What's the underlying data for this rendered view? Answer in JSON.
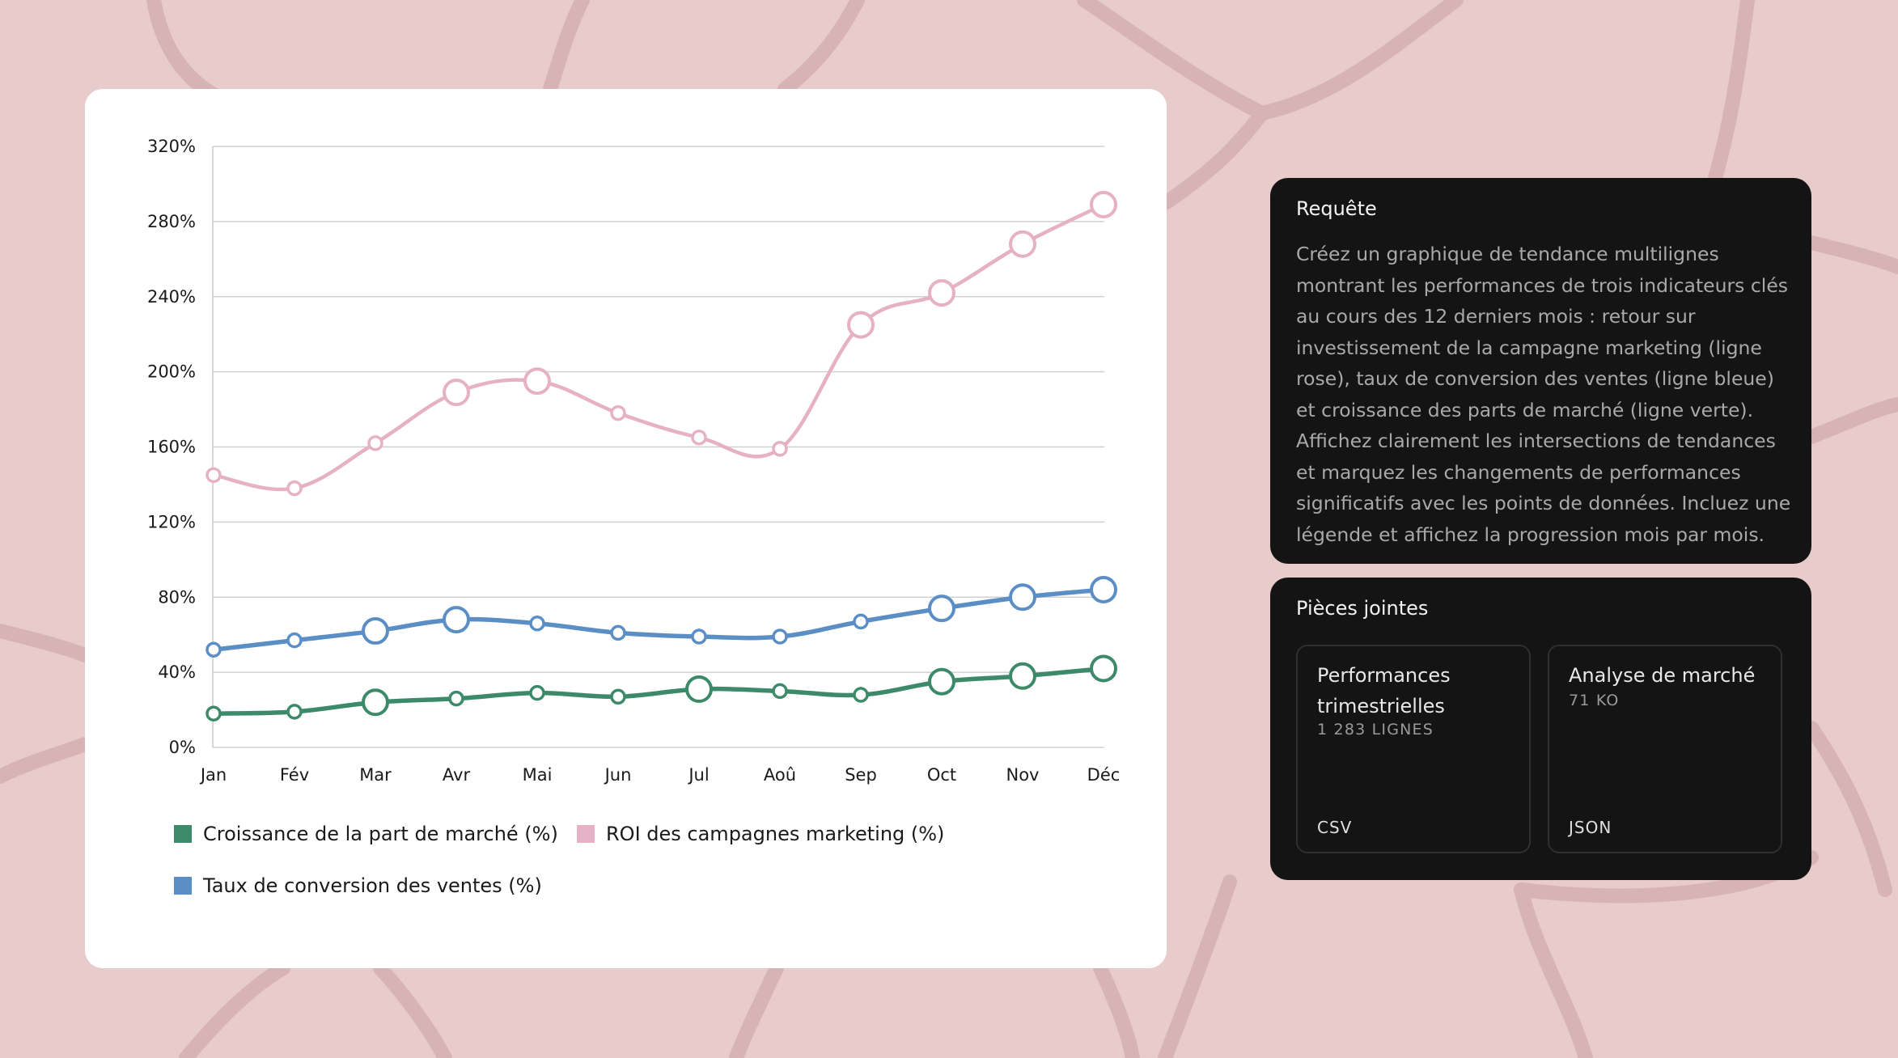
{
  "chart_data": {
    "type": "line",
    "categories": [
      "Jan",
      "Fév",
      "Mar",
      "Avr",
      "Mai",
      "Jun",
      "Jul",
      "Aoû",
      "Sep",
      "Oct",
      "Nov",
      "Déc"
    ],
    "ylim": [
      0,
      320
    ],
    "yticks": [
      0,
      40,
      80,
      120,
      160,
      200,
      240,
      280,
      320
    ],
    "ytick_labels": [
      "0%",
      "40%",
      "80%",
      "120%",
      "160%",
      "200%",
      "240%",
      "280%",
      "320%"
    ],
    "grid": true,
    "legend_position": "bottom",
    "series": [
      {
        "name": "Croissance de la part de marché (%)",
        "color": "#3d8a6b",
        "values": [
          18,
          19,
          24,
          26,
          29,
          27,
          31,
          30,
          28,
          35,
          38,
          42
        ],
        "highlighted": [
          false,
          false,
          true,
          false,
          false,
          false,
          true,
          false,
          false,
          true,
          true,
          true
        ]
      },
      {
        "name": "ROI des campagnes marketing (%)",
        "color": "#e6b1c5",
        "values": [
          145,
          138,
          162,
          189,
          195,
          178,
          165,
          159,
          225,
          242,
          268,
          289
        ],
        "highlighted": [
          false,
          false,
          false,
          true,
          true,
          false,
          false,
          false,
          true,
          true,
          true,
          true
        ]
      },
      {
        "name": "Taux de conversion des ventes (%)",
        "color": "#5b8ec4",
        "values": [
          52,
          57,
          62,
          68,
          66,
          61,
          59,
          59,
          67,
          74,
          80,
          84
        ],
        "highlighted": [
          false,
          false,
          true,
          true,
          false,
          false,
          false,
          false,
          false,
          true,
          true,
          true
        ]
      }
    ]
  },
  "query": {
    "title": "Requête",
    "text": "Créez un graphique de tendance multilignes montrant les performances de trois indicateurs clés au cours des 12 derniers mois : retour sur investissement de la campagne marketing (ligne rose), taux de conversion des ventes (ligne bleue) et croissance des parts de marché (ligne verte). Affichez clairement les intersections de tendances et marquez les changements de performances significatifs avec les points de données. Incluez une légende et affichez la progression mois par mois."
  },
  "attachments": {
    "title": "Pièces jointes",
    "files": [
      {
        "name": "Performances trimestrielles",
        "meta": "1 283 LIGNES",
        "type": "CSV"
      },
      {
        "name": "Analyse de marché",
        "meta": "71 KO",
        "type": "JSON"
      }
    ]
  },
  "colors": {
    "background": "#e8cbcb",
    "card": "#ffffff",
    "panel": "#141414"
  }
}
